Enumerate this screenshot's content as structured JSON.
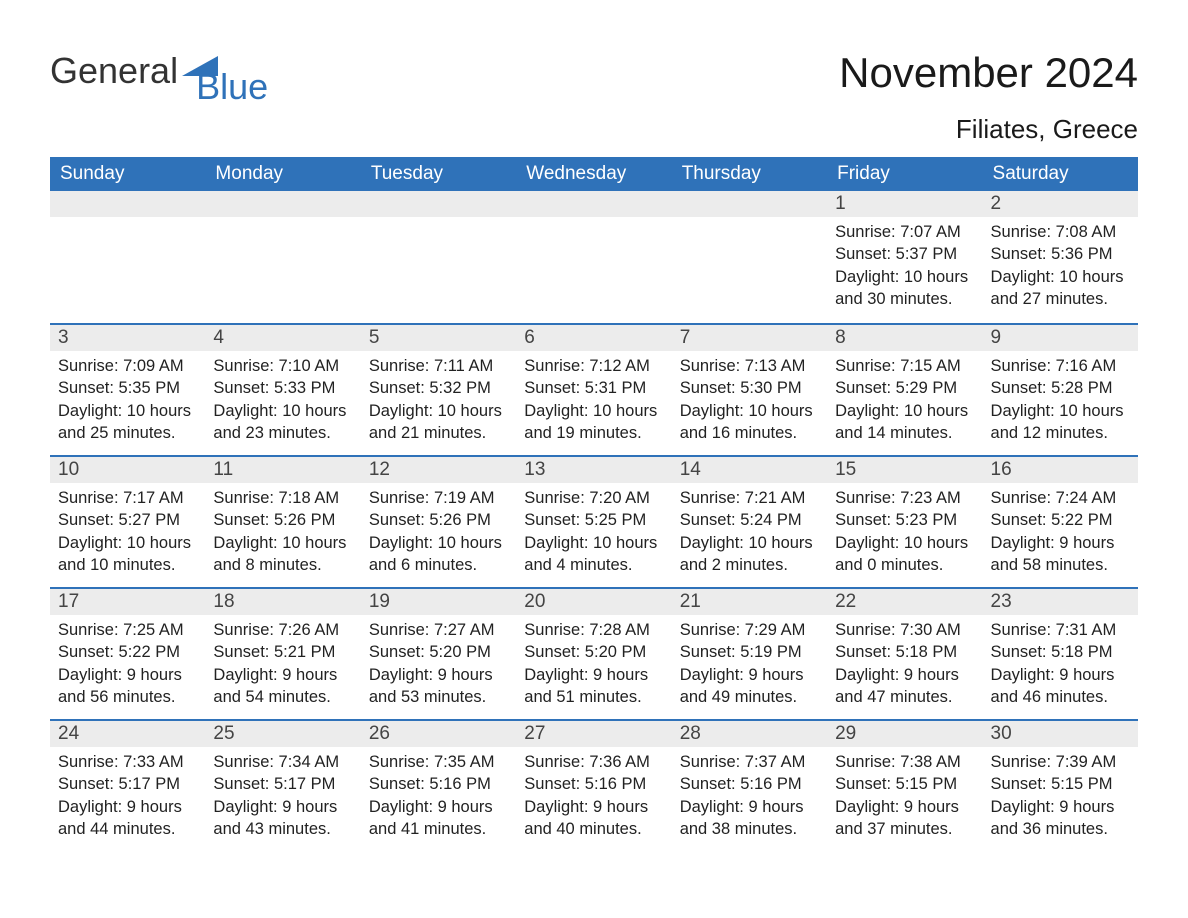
{
  "brand": {
    "general": "General",
    "blue": "Blue",
    "icon_color": "#2f72b9"
  },
  "header": {
    "title": "November 2024",
    "location": "Filiates, Greece"
  },
  "style": {
    "header_bg": "#2f72b9",
    "header_text": "#ffffff",
    "daynum_bg": "#ececec",
    "row_border": "#2f72b9",
    "page_bg": "#ffffff",
    "text_color": "#222222",
    "title_fontsize": 42,
    "location_fontsize": 26,
    "dayheader_fontsize": 19,
    "detail_fontsize": 16.5
  },
  "day_headers": [
    "Sunday",
    "Monday",
    "Tuesday",
    "Wednesday",
    "Thursday",
    "Friday",
    "Saturday"
  ],
  "weeks": [
    [
      null,
      null,
      null,
      null,
      null,
      {
        "n": "1",
        "sr": "Sunrise: 7:07 AM",
        "ss": "Sunset: 5:37 PM",
        "dl1": "Daylight: 10 hours",
        "dl2": "and 30 minutes."
      },
      {
        "n": "2",
        "sr": "Sunrise: 7:08 AM",
        "ss": "Sunset: 5:36 PM",
        "dl1": "Daylight: 10 hours",
        "dl2": "and 27 minutes."
      }
    ],
    [
      {
        "n": "3",
        "sr": "Sunrise: 7:09 AM",
        "ss": "Sunset: 5:35 PM",
        "dl1": "Daylight: 10 hours",
        "dl2": "and 25 minutes."
      },
      {
        "n": "4",
        "sr": "Sunrise: 7:10 AM",
        "ss": "Sunset: 5:33 PM",
        "dl1": "Daylight: 10 hours",
        "dl2": "and 23 minutes."
      },
      {
        "n": "5",
        "sr": "Sunrise: 7:11 AM",
        "ss": "Sunset: 5:32 PM",
        "dl1": "Daylight: 10 hours",
        "dl2": "and 21 minutes."
      },
      {
        "n": "6",
        "sr": "Sunrise: 7:12 AM",
        "ss": "Sunset: 5:31 PM",
        "dl1": "Daylight: 10 hours",
        "dl2": "and 19 minutes."
      },
      {
        "n": "7",
        "sr": "Sunrise: 7:13 AM",
        "ss": "Sunset: 5:30 PM",
        "dl1": "Daylight: 10 hours",
        "dl2": "and 16 minutes."
      },
      {
        "n": "8",
        "sr": "Sunrise: 7:15 AM",
        "ss": "Sunset: 5:29 PM",
        "dl1": "Daylight: 10 hours",
        "dl2": "and 14 minutes."
      },
      {
        "n": "9",
        "sr": "Sunrise: 7:16 AM",
        "ss": "Sunset: 5:28 PM",
        "dl1": "Daylight: 10 hours",
        "dl2": "and 12 minutes."
      }
    ],
    [
      {
        "n": "10",
        "sr": "Sunrise: 7:17 AM",
        "ss": "Sunset: 5:27 PM",
        "dl1": "Daylight: 10 hours",
        "dl2": "and 10 minutes."
      },
      {
        "n": "11",
        "sr": "Sunrise: 7:18 AM",
        "ss": "Sunset: 5:26 PM",
        "dl1": "Daylight: 10 hours",
        "dl2": "and 8 minutes."
      },
      {
        "n": "12",
        "sr": "Sunrise: 7:19 AM",
        "ss": "Sunset: 5:26 PM",
        "dl1": "Daylight: 10 hours",
        "dl2": "and 6 minutes."
      },
      {
        "n": "13",
        "sr": "Sunrise: 7:20 AM",
        "ss": "Sunset: 5:25 PM",
        "dl1": "Daylight: 10 hours",
        "dl2": "and 4 minutes."
      },
      {
        "n": "14",
        "sr": "Sunrise: 7:21 AM",
        "ss": "Sunset: 5:24 PM",
        "dl1": "Daylight: 10 hours",
        "dl2": "and 2 minutes."
      },
      {
        "n": "15",
        "sr": "Sunrise: 7:23 AM",
        "ss": "Sunset: 5:23 PM",
        "dl1": "Daylight: 10 hours",
        "dl2": "and 0 minutes."
      },
      {
        "n": "16",
        "sr": "Sunrise: 7:24 AM",
        "ss": "Sunset: 5:22 PM",
        "dl1": "Daylight: 9 hours",
        "dl2": "and 58 minutes."
      }
    ],
    [
      {
        "n": "17",
        "sr": "Sunrise: 7:25 AM",
        "ss": "Sunset: 5:22 PM",
        "dl1": "Daylight: 9 hours",
        "dl2": "and 56 minutes."
      },
      {
        "n": "18",
        "sr": "Sunrise: 7:26 AM",
        "ss": "Sunset: 5:21 PM",
        "dl1": "Daylight: 9 hours",
        "dl2": "and 54 minutes."
      },
      {
        "n": "19",
        "sr": "Sunrise: 7:27 AM",
        "ss": "Sunset: 5:20 PM",
        "dl1": "Daylight: 9 hours",
        "dl2": "and 53 minutes."
      },
      {
        "n": "20",
        "sr": "Sunrise: 7:28 AM",
        "ss": "Sunset: 5:20 PM",
        "dl1": "Daylight: 9 hours",
        "dl2": "and 51 minutes."
      },
      {
        "n": "21",
        "sr": "Sunrise: 7:29 AM",
        "ss": "Sunset: 5:19 PM",
        "dl1": "Daylight: 9 hours",
        "dl2": "and 49 minutes."
      },
      {
        "n": "22",
        "sr": "Sunrise: 7:30 AM",
        "ss": "Sunset: 5:18 PM",
        "dl1": "Daylight: 9 hours",
        "dl2": "and 47 minutes."
      },
      {
        "n": "23",
        "sr": "Sunrise: 7:31 AM",
        "ss": "Sunset: 5:18 PM",
        "dl1": "Daylight: 9 hours",
        "dl2": "and 46 minutes."
      }
    ],
    [
      {
        "n": "24",
        "sr": "Sunrise: 7:33 AM",
        "ss": "Sunset: 5:17 PM",
        "dl1": "Daylight: 9 hours",
        "dl2": "and 44 minutes."
      },
      {
        "n": "25",
        "sr": "Sunrise: 7:34 AM",
        "ss": "Sunset: 5:17 PM",
        "dl1": "Daylight: 9 hours",
        "dl2": "and 43 minutes."
      },
      {
        "n": "26",
        "sr": "Sunrise: 7:35 AM",
        "ss": "Sunset: 5:16 PM",
        "dl1": "Daylight: 9 hours",
        "dl2": "and 41 minutes."
      },
      {
        "n": "27",
        "sr": "Sunrise: 7:36 AM",
        "ss": "Sunset: 5:16 PM",
        "dl1": "Daylight: 9 hours",
        "dl2": "and 40 minutes."
      },
      {
        "n": "28",
        "sr": "Sunrise: 7:37 AM",
        "ss": "Sunset: 5:16 PM",
        "dl1": "Daylight: 9 hours",
        "dl2": "and 38 minutes."
      },
      {
        "n": "29",
        "sr": "Sunrise: 7:38 AM",
        "ss": "Sunset: 5:15 PM",
        "dl1": "Daylight: 9 hours",
        "dl2": "and 37 minutes."
      },
      {
        "n": "30",
        "sr": "Sunrise: 7:39 AM",
        "ss": "Sunset: 5:15 PM",
        "dl1": "Daylight: 9 hours",
        "dl2": "and 36 minutes."
      }
    ]
  ]
}
